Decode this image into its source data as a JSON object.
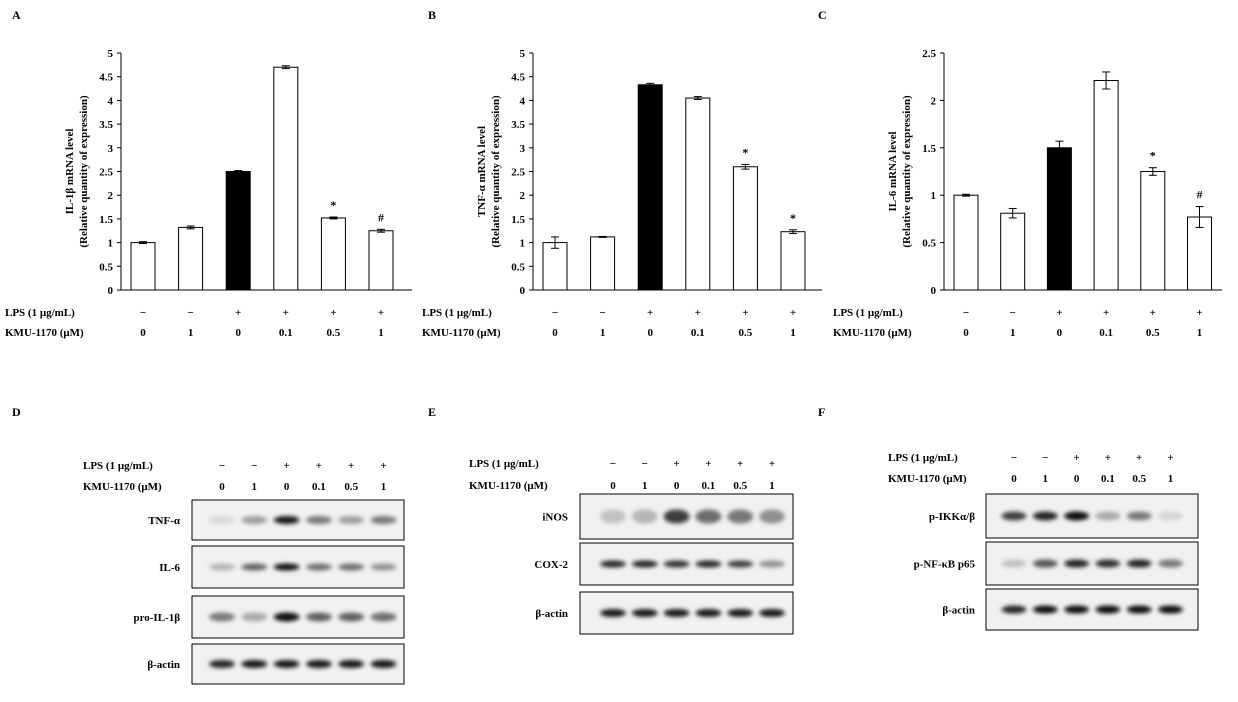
{
  "panels": {
    "A": {
      "letter": "A"
    },
    "B": {
      "letter": "B"
    },
    "C": {
      "letter": "C"
    },
    "D": {
      "letter": "D"
    },
    "E": {
      "letter": "E"
    },
    "F": {
      "letter": "F"
    }
  },
  "conditions": {
    "lps_label": "LPS (1 μg/mL)",
    "kmu_label": "KMU-1170 (μM)",
    "lps_values": [
      "−",
      "−",
      "+",
      "+",
      "+",
      "+"
    ],
    "kmu_values": [
      "0",
      "1",
      "0",
      "0.1",
      "0.5",
      "1"
    ]
  },
  "chart_data": [
    {
      "type": "bar",
      "panel": "A",
      "ylabel_line1": "IL-1β  mRNA  level",
      "ylabel_line2": "(Relative  quantity  of  expression)",
      "ylim": [
        0,
        5
      ],
      "yticks": [
        "0",
        "0.5",
        "1",
        "1.5",
        "2",
        "2.5",
        "3",
        "3.5",
        "4",
        "4.5",
        "5"
      ],
      "values": [
        1.0,
        1.32,
        2.5,
        4.7,
        1.52,
        1.25
      ],
      "errors": [
        0.02,
        0.03,
        0.02,
        0.03,
        0.02,
        0.03
      ],
      "bar_fill": [
        "white",
        "white",
        "black",
        "white",
        "white",
        "white"
      ],
      "annotations": [
        "",
        "",
        "",
        "",
        "*",
        "#"
      ]
    },
    {
      "type": "bar",
      "panel": "B",
      "ylabel_line1": "TNF-α  mRNA  level",
      "ylabel_line2": "(Relative  quantity  of  expression)",
      "ylim": [
        0,
        5
      ],
      "yticks": [
        "0",
        "0.5",
        "1",
        "1.5",
        "2",
        "2.5",
        "3",
        "3.5",
        "4",
        "4.5",
        "5"
      ],
      "values": [
        1.0,
        1.12,
        4.33,
        4.05,
        2.6,
        1.23
      ],
      "errors": [
        0.12,
        0.01,
        0.03,
        0.03,
        0.05,
        0.04
      ],
      "bar_fill": [
        "white",
        "white",
        "black",
        "white",
        "white",
        "white"
      ],
      "annotations": [
        "",
        "",
        "",
        "",
        "*",
        "*"
      ]
    },
    {
      "type": "bar",
      "panel": "C",
      "ylabel_line1": "IL-6  mRNA  level",
      "ylabel_line2": "(Relative  quantity  of  expression)",
      "ylim": [
        0,
        2.5
      ],
      "yticks": [
        "0",
        "0.5",
        "1",
        "1.5",
        "2",
        "2.5"
      ],
      "values": [
        1.0,
        0.81,
        1.5,
        2.21,
        1.25,
        0.77
      ],
      "errors": [
        0.01,
        0.05,
        0.07,
        0.09,
        0.04,
        0.11
      ],
      "bar_fill": [
        "white",
        "white",
        "black",
        "white",
        "white",
        "white"
      ],
      "annotations": [
        "",
        "",
        "",
        "",
        "*",
        "#"
      ]
    }
  ],
  "blots": {
    "D": {
      "rows": [
        "TNF-α",
        "IL-6",
        "pro-IL-1β",
        "β-actin"
      ]
    },
    "E": {
      "rows": [
        "iNOS",
        "COX-2",
        "β-actin"
      ]
    },
    "F": {
      "rows": [
        "p-IKKα/β",
        "p-NF-κB p65",
        "β-actin"
      ]
    }
  },
  "colors": {
    "bar_treated": "#000000",
    "bar_control": "#ffffff",
    "membrane": "#f1f1f1"
  }
}
